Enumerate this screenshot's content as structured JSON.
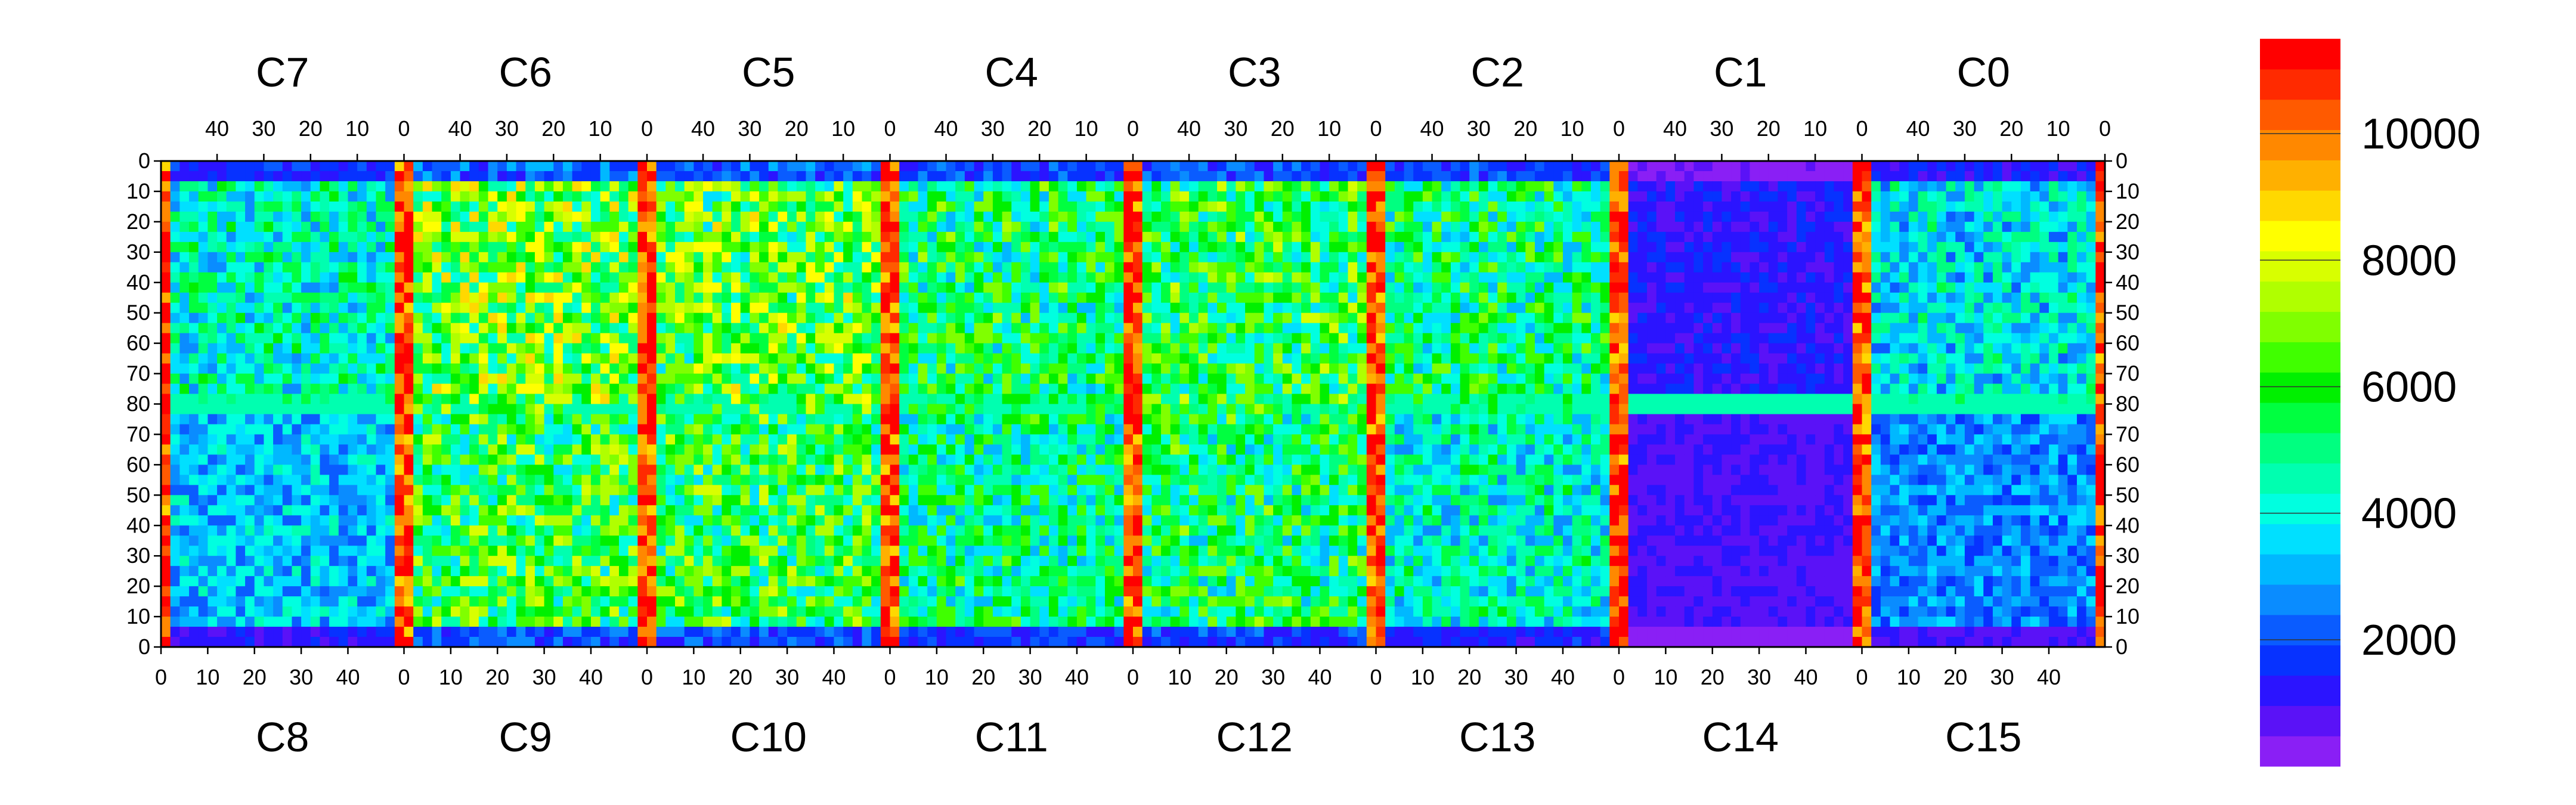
{
  "chart_data": {
    "type": "heatmap",
    "title": "",
    "top_chips": [
      "C7",
      "C6",
      "C5",
      "C4",
      "C3",
      "C2",
      "C1",
      "C0"
    ],
    "bottom_chips": [
      "C8",
      "C9",
      "C10",
      "C11",
      "C12",
      "C13",
      "C14",
      "C15"
    ],
    "top_column_ticks": [
      "40",
      "30",
      "20",
      "10",
      "0"
    ],
    "bottom_column_ticks": [
      "0",
      "10",
      "20",
      "30",
      "40"
    ],
    "top_column_tick_values": [
      40,
      30,
      20,
      10,
      0
    ],
    "bottom_column_tick_values": [
      0,
      10,
      20,
      30,
      40
    ],
    "columns_per_chip": 52,
    "rows_per_half": 80,
    "row_ticks_top_half": [
      "0",
      "10",
      "20",
      "30",
      "40",
      "50",
      "60",
      "70",
      "80"
    ],
    "row_ticks_bottom_half": [
      "70",
      "60",
      "50",
      "40",
      "30",
      "20",
      "10",
      "0"
    ],
    "colorbar": {
      "min": 0,
      "max": 11500,
      "ticks": [
        "2000",
        "4000",
        "6000",
        "8000",
        "10000"
      ],
      "tick_values": [
        2000,
        4000,
        6000,
        8000,
        10000
      ],
      "colors": [
        "#8a1ff5",
        "#5a12f7",
        "#2b14ff",
        "#0732ff",
        "#0a5cff",
        "#0a8cff",
        "#00b8ff",
        "#00e0ff",
        "#00ffe0",
        "#00ffb0",
        "#00ff80",
        "#00ff40",
        "#00f000",
        "#40ff00",
        "#80ff00",
        "#b0ff00",
        "#d8ff00",
        "#ffff00",
        "#ffd800",
        "#ffb000",
        "#ff8800",
        "#ff5a00",
        "#ff2a00",
        "#ff0000"
      ]
    },
    "summary_occupancy": {
      "chip_order_top": [
        "C7",
        "C6",
        "C5",
        "C4",
        "C3",
        "C2",
        "C1",
        "C0"
      ],
      "typical_level_top_half": [
        4200,
        6500,
        6200,
        5200,
        5600,
        5000,
        1200,
        3800
      ],
      "chip_order_bottom": [
        "C8",
        "C9",
        "C10",
        "C11",
        "C12",
        "C13",
        "C14",
        "C15"
      ],
      "typical_level_bottom_half": [
        3200,
        5800,
        5600,
        4800,
        5200,
        4200,
        900,
        2600
      ],
      "edge_column_level": 10500,
      "middle_row_level": 4500
    },
    "grid": false
  }
}
